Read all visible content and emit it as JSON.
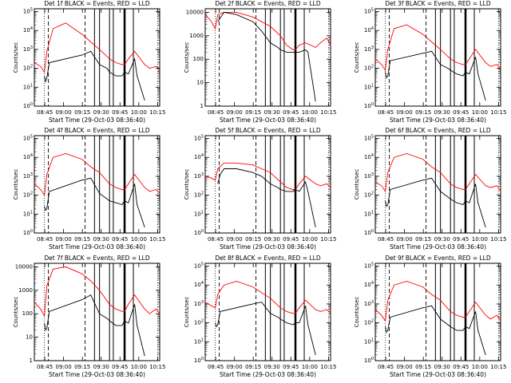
{
  "chart_data": [
    {
      "type": "line",
      "title": "Det 1f BLACK = Events, RED = LLD",
      "xlabel": "Start Time (29-Oct-03 08:36:40)",
      "ylabel": "Counts/sec",
      "x_ticks": [
        "08:45",
        "09:00",
        "09:15",
        "09:30",
        "09:45",
        "10:00",
        "10:15"
      ],
      "y_ticks": [
        "10^0",
        "10^1",
        "10^2",
        "10^3",
        "10^4",
        "10^5"
      ],
      "ylim_log10": [
        0,
        5.15
      ],
      "y_scale": "log",
      "series": [
        {
          "color": "#ff0000",
          "x_min": [
            0,
            5,
            8,
            10,
            15,
            25,
            38,
            45,
            52,
            60,
            65,
            70,
            72,
            75,
            80,
            88,
            92,
            97,
            100
          ],
          "log10_y": [
            2.3,
            2.1,
            1.8,
            2.9,
            4.1,
            4.4,
            3.8,
            3.4,
            3.0,
            2.5,
            2.3,
            2.2,
            2.2,
            2.5,
            2.9,
            2.2,
            2.0,
            2.1,
            2.0
          ]
        },
        {
          "color": "#000000",
          "x_min": [
            8,
            9,
            10,
            12,
            38,
            45,
            52,
            58,
            60,
            65,
            70,
            72,
            75,
            80,
            82,
            88
          ],
          "log10_y": [
            1.6,
            1.3,
            1.5,
            2.3,
            2.7,
            2.9,
            2.2,
            2.0,
            1.8,
            1.6,
            1.6,
            1.8,
            1.7,
            2.5,
            1.6,
            0.3
          ]
        }
      ]
    },
    {
      "type": "line",
      "title": "Det 2f BLACK = Events, RED = LLD",
      "xlabel": "Start Time (29-Oct-03 08:36:40)",
      "ylabel": "Counts/sec",
      "x_ticks": [
        "08:45",
        "09:00",
        "09:15",
        "09:30",
        "09:45",
        "10:00",
        "10:15"
      ],
      "y_ticks": [
        "1",
        "10",
        "100",
        "1000",
        "10000"
      ],
      "ylim_log10": [
        0,
        4.15
      ],
      "y_scale": "log",
      "series": [
        {
          "color": "#ff0000",
          "x_min": [
            0,
            5,
            8,
            10,
            15,
            25,
            38,
            45,
            52,
            60,
            65,
            70,
            72,
            75,
            80,
            88,
            92,
            97,
            100
          ],
          "log10_y": [
            3.9,
            3.6,
            3.3,
            3.9,
            4.0,
            4.0,
            3.8,
            3.6,
            3.4,
            3.0,
            2.6,
            2.4,
            2.4,
            2.6,
            2.7,
            2.5,
            2.7,
            2.9,
            2.6
          ]
        },
        {
          "color": "#000000",
          "x_min": [
            10,
            15,
            25,
            38,
            45,
            52,
            58,
            60,
            65,
            70,
            72,
            75,
            80,
            82,
            88
          ],
          "log10_y": [
            3.6,
            4.0,
            3.9,
            3.6,
            3.2,
            2.7,
            2.5,
            2.4,
            2.3,
            2.3,
            2.3,
            2.3,
            2.4,
            2.3,
            0.2
          ]
        }
      ]
    },
    {
      "type": "line",
      "title": "Det 3f BLACK = Events, RED = LLD",
      "xlabel": "Start Time (29-Oct-03 08:36:40)",
      "ylabel": "Counts/sec",
      "x_ticks": [
        "08:45",
        "09:00",
        "09:15",
        "09:30",
        "09:45",
        "10:00",
        "10:15"
      ],
      "y_ticks": [
        "10^0",
        "10^1",
        "10^2",
        "10^3",
        "10^4",
        "10^5"
      ],
      "ylim_log10": [
        0,
        5.15
      ],
      "y_scale": "log",
      "series": [
        {
          "color": "#ff0000",
          "x_min": [
            0,
            5,
            8,
            10,
            15,
            25,
            38,
            45,
            52,
            60,
            65,
            70,
            72,
            75,
            80,
            88,
            92,
            97,
            100
          ],
          "log10_y": [
            2.5,
            2.2,
            1.9,
            3.0,
            4.1,
            4.3,
            3.8,
            3.4,
            3.0,
            2.5,
            2.3,
            2.2,
            2.2,
            2.5,
            3.0,
            2.3,
            2.1,
            2.2,
            2.0
          ]
        },
        {
          "color": "#000000",
          "x_min": [
            8,
            9,
            10,
            12,
            38,
            45,
            52,
            58,
            60,
            65,
            70,
            72,
            75,
            80,
            82,
            88
          ],
          "log10_y": [
            1.8,
            1.5,
            1.6,
            2.4,
            2.8,
            2.9,
            2.2,
            2.0,
            1.9,
            1.7,
            1.6,
            1.8,
            1.7,
            2.6,
            1.7,
            0.3
          ]
        }
      ]
    },
    {
      "type": "line",
      "title": "Det 4f BLACK = Events, RED = LLD",
      "xlabel": "Start Time (29-Oct-03 08:36:40)",
      "ylabel": "Counts/sec",
      "x_ticks": [
        "08:45",
        "09:00",
        "09:15",
        "09:30",
        "09:45",
        "10:00",
        "10:15"
      ],
      "y_ticks": [
        "10^0",
        "10^1",
        "10^2",
        "10^3",
        "10^4",
        "10^5"
      ],
      "ylim_log10": [
        0,
        5.15
      ],
      "y_scale": "log",
      "series": [
        {
          "color": "#ff0000",
          "x_min": [
            0,
            5,
            8,
            10,
            15,
            25,
            38,
            45,
            52,
            60,
            65,
            70,
            72,
            75,
            80,
            88,
            92,
            97,
            100
          ],
          "log10_y": [
            2.6,
            2.3,
            2.0,
            3.1,
            4.0,
            4.2,
            3.9,
            3.5,
            3.2,
            2.6,
            2.4,
            2.3,
            2.3,
            2.6,
            3.1,
            2.4,
            2.2,
            2.3,
            2.1
          ]
        },
        {
          "color": "#000000",
          "x_min": [
            8,
            9,
            10,
            12,
            38,
            45,
            52,
            58,
            60,
            65,
            70,
            72,
            75,
            80,
            82,
            88
          ],
          "log10_y": [
            1.4,
            1.2,
            1.3,
            2.2,
            2.8,
            2.9,
            2.1,
            1.8,
            1.7,
            1.6,
            1.5,
            1.7,
            1.6,
            2.6,
            1.5,
            0.3
          ]
        }
      ]
    },
    {
      "type": "line",
      "title": "Det 5f BLACK = Events, RED = LLD",
      "xlabel": "Start Time (29-Oct-03 08:36:40)",
      "ylabel": "Counts/sec",
      "x_ticks": [
        "08:45",
        "09:00",
        "09:15",
        "09:30",
        "09:45",
        "10:00",
        "10:15"
      ],
      "y_ticks": [
        "10^0",
        "10^1",
        "10^2",
        "10^3",
        "10^4",
        "10^5"
      ],
      "ylim_log10": [
        0,
        5.15
      ],
      "y_scale": "log",
      "series": [
        {
          "color": "#ff0000",
          "x_min": [
            0,
            5,
            8,
            10,
            15,
            25,
            38,
            45,
            52,
            60,
            65,
            70,
            72,
            75,
            80,
            88,
            92,
            97,
            100
          ],
          "log10_y": [
            3.0,
            2.9,
            2.8,
            3.4,
            3.7,
            3.7,
            3.6,
            3.4,
            3.2,
            2.7,
            2.4,
            2.3,
            2.3,
            2.6,
            3.0,
            2.6,
            2.5,
            2.6,
            2.4
          ]
        },
        {
          "color": "#000000",
          "x_min": [
            10,
            12,
            15,
            25,
            38,
            45,
            52,
            58,
            60,
            65,
            70,
            72,
            75,
            80,
            82,
            88
          ],
          "log10_y": [
            2.6,
            3.1,
            3.4,
            3.4,
            3.2,
            3.0,
            2.6,
            2.4,
            2.3,
            2.2,
            2.2,
            2.3,
            2.2,
            2.7,
            2.2,
            0.3
          ]
        }
      ]
    },
    {
      "type": "line",
      "title": "Det 6f BLACK = Events, RED = LLD",
      "xlabel": "Start Time (29-Oct-03 08:36:40)",
      "ylabel": "Counts/sec",
      "x_ticks": [
        "08:45",
        "09:00",
        "09:15",
        "09:30",
        "09:45",
        "10:00",
        "10:15"
      ],
      "y_ticks": [
        "10^0",
        "10^1",
        "10^2",
        "10^3",
        "10^4",
        "10^5"
      ],
      "ylim_log10": [
        0,
        5.15
      ],
      "y_scale": "log",
      "series": [
        {
          "color": "#ff0000",
          "x_min": [
            0,
            5,
            8,
            10,
            15,
            25,
            38,
            45,
            52,
            60,
            65,
            70,
            72,
            75,
            80,
            88,
            92,
            97,
            100
          ],
          "log10_y": [
            2.7,
            2.5,
            2.2,
            3.2,
            4.0,
            4.2,
            3.9,
            3.5,
            3.2,
            2.6,
            2.4,
            2.3,
            2.3,
            2.6,
            3.1,
            2.5,
            2.4,
            2.5,
            2.2
          ]
        },
        {
          "color": "#000000",
          "x_min": [
            8,
            9,
            10,
            12,
            38,
            45,
            52,
            58,
            60,
            65,
            70,
            72,
            75,
            80,
            82,
            88
          ],
          "log10_y": [
            1.7,
            1.4,
            1.5,
            2.3,
            2.8,
            2.9,
            2.2,
            1.9,
            1.8,
            1.6,
            1.5,
            1.7,
            1.6,
            2.6,
            1.6,
            0.3
          ]
        }
      ]
    },
    {
      "type": "line",
      "title": "Det 7f BLACK = Events, RED = LLD",
      "xlabel": "Start Time (29-Oct-03 08:36:40)",
      "ylabel": "Counts/sec",
      "x_ticks": [
        "08:45",
        "09:00",
        "09:15",
        "09:30",
        "09:45",
        "10:00",
        "10:15"
      ],
      "y_ticks": [
        "1",
        "10",
        "100",
        "1000",
        "10000"
      ],
      "ylim_log10": [
        0,
        4.15
      ],
      "y_scale": "log",
      "series": [
        {
          "color": "#ff0000",
          "x_min": [
            0,
            5,
            8,
            10,
            15,
            25,
            38,
            45,
            52,
            60,
            65,
            70,
            72,
            75,
            80,
            88,
            92,
            97,
            100
          ],
          "log10_y": [
            2.5,
            2.2,
            1.9,
            3.2,
            3.9,
            4.0,
            3.7,
            3.4,
            3.0,
            2.4,
            2.2,
            2.1,
            2.1,
            2.4,
            2.8,
            2.2,
            2.0,
            2.2,
            2.0
          ]
        },
        {
          "color": "#000000",
          "x_min": [
            8,
            9,
            10,
            12,
            38,
            45,
            52,
            58,
            60,
            65,
            70,
            72,
            75,
            80,
            82,
            88
          ],
          "log10_y": [
            1.6,
            1.3,
            1.4,
            2.1,
            2.6,
            2.8,
            2.0,
            1.8,
            1.7,
            1.5,
            1.5,
            1.7,
            1.6,
            2.4,
            1.5,
            0.2
          ]
        }
      ]
    },
    {
      "type": "line",
      "title": "Det 8f BLACK = Events, RED = LLD",
      "xlabel": "Start Time (29-Oct-03 08:36:40)",
      "ylabel": "Counts/sec",
      "x_ticks": [
        "08:45",
        "09:00",
        "09:15",
        "09:30",
        "09:45",
        "10:00",
        "10:15"
      ],
      "y_ticks": [
        "10^0",
        "10^1",
        "10^2",
        "10^3",
        "10^4",
        "10^5"
      ],
      "ylim_log10": [
        0,
        5.15
      ],
      "y_scale": "log",
      "series": [
        {
          "color": "#ff0000",
          "x_min": [
            0,
            5,
            8,
            10,
            15,
            25,
            38,
            45,
            52,
            60,
            65,
            70,
            72,
            75,
            80,
            88,
            92,
            97,
            100
          ],
          "log10_y": [
            3.1,
            2.9,
            2.8,
            3.5,
            4.0,
            4.2,
            3.9,
            3.6,
            3.3,
            2.8,
            2.6,
            2.5,
            2.5,
            2.8,
            3.2,
            2.7,
            2.6,
            2.7,
            2.5
          ]
        },
        {
          "color": "#000000",
          "x_min": [
            8,
            9,
            10,
            12,
            38,
            45,
            52,
            58,
            60,
            65,
            70,
            72,
            75,
            80,
            82,
            88
          ],
          "log10_y": [
            2.0,
            1.8,
            1.9,
            2.6,
            3.0,
            3.1,
            2.5,
            2.3,
            2.2,
            2.0,
            1.9,
            2.0,
            2.0,
            2.9,
            1.9,
            0.3
          ]
        }
      ]
    },
    {
      "type": "line",
      "title": "Det 9f BLACK = Events, RED = LLD",
      "xlabel": "Start Time (29-Oct-03 08:36:40)",
      "ylabel": "Counts/sec",
      "x_ticks": [
        "08:45",
        "09:00",
        "09:15",
        "09:30",
        "09:45",
        "10:00",
        "10:15"
      ],
      "y_ticks": [
        "10^0",
        "10^1",
        "10^2",
        "10^3",
        "10^4",
        "10^5"
      ],
      "ylim_log10": [
        0,
        5.15
      ],
      "y_scale": "log",
      "series": [
        {
          "color": "#ff0000",
          "x_min": [
            0,
            5,
            8,
            10,
            15,
            25,
            38,
            45,
            52,
            60,
            65,
            70,
            72,
            75,
            80,
            88,
            92,
            97,
            100
          ],
          "log10_y": [
            2.7,
            2.4,
            2.1,
            3.2,
            4.0,
            4.2,
            3.9,
            3.5,
            3.2,
            2.6,
            2.4,
            2.3,
            2.3,
            2.6,
            3.1,
            2.4,
            2.2,
            2.4,
            2.1
          ]
        },
        {
          "color": "#000000",
          "x_min": [
            8,
            9,
            10,
            12,
            38,
            45,
            52,
            58,
            60,
            65,
            70,
            72,
            75,
            80,
            82,
            88
          ],
          "log10_y": [
            1.8,
            1.5,
            1.6,
            2.3,
            2.8,
            2.9,
            2.2,
            1.9,
            1.8,
            1.6,
            1.6,
            1.8,
            1.7,
            2.6,
            1.6,
            0.3
          ]
        }
      ]
    }
  ]
}
